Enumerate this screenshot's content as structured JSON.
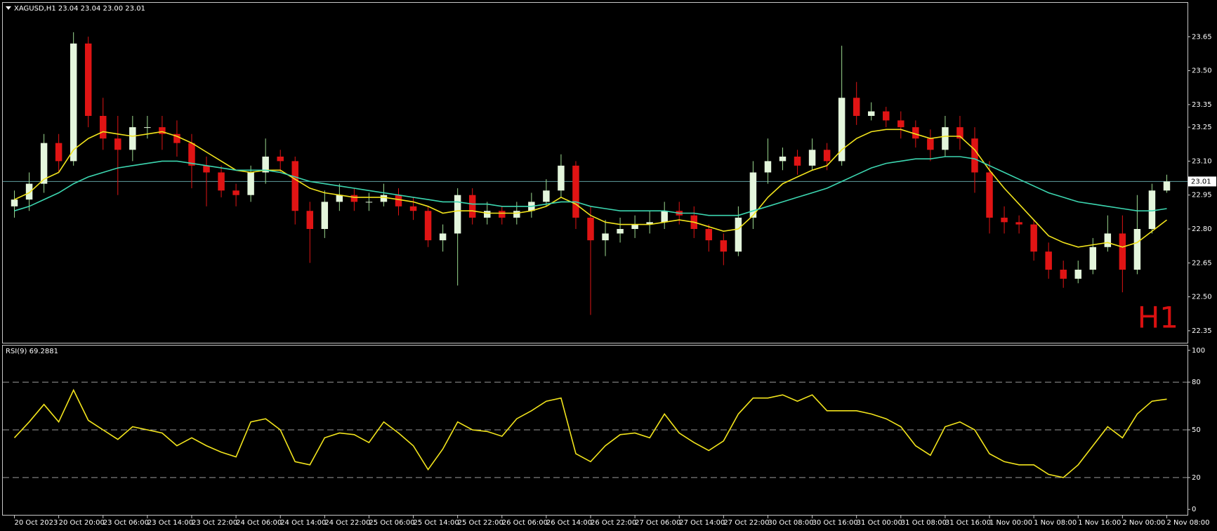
{
  "chart_data": [
    {
      "type": "candlestick",
      "title": "XAGUSD,H1 23.04 23.04 23.00 23.01",
      "watermark": "H1",
      "current_price": 23.01,
      "up_color": "#e4f6dc",
      "down_color": "#e01414",
      "current_price_color": "#5f9ea0",
      "categories": [
        "20 Oct 2023",
        null,
        null,
        "20 Oct 20:00",
        null,
        null,
        "23 Oct 06:00",
        null,
        null,
        "23 Oct 14:00",
        null,
        null,
        "23 Oct 22:00",
        null,
        null,
        "24 Oct 06:00",
        null,
        null,
        "24 Oct 14:00",
        null,
        null,
        "24 Oct 22:00",
        null,
        null,
        "25 Oct 06:00",
        null,
        null,
        "25 Oct 14:00",
        null,
        null,
        "25 Oct 22:00",
        null,
        null,
        "26 Oct 06:00",
        null,
        null,
        "26 Oct 14:00",
        null,
        null,
        "26 Oct 22:00",
        null,
        null,
        "27 Oct 06:00",
        null,
        null,
        "27 Oct 14:00",
        null,
        null,
        "27 Oct 22:00",
        null,
        null,
        "30 Oct 08:00",
        null,
        null,
        "30 Oct 16:00",
        null,
        null,
        "31 Oct 00:00",
        null,
        null,
        "31 Oct 08:00",
        null,
        null,
        "31 Oct 16:00",
        null,
        null,
        "1 Nov 00:00",
        null,
        null,
        "1 Nov 08:00",
        null,
        null,
        "1 Nov 16:00",
        null,
        null,
        "2 Nov 00:00",
        null,
        null,
        "2 Nov 08:00"
      ],
      "open": [
        22.9,
        22.93,
        23.0,
        23.18,
        23.1,
        23.62,
        23.3,
        23.2,
        23.15,
        23.25,
        23.25,
        23.22,
        23.18,
        23.08,
        23.05,
        22.97,
        22.95,
        23.05,
        23.12,
        23.1,
        22.88,
        22.8,
        22.92,
        22.95,
        22.92,
        22.92,
        22.95,
        22.9,
        22.88,
        22.75,
        22.78,
        22.95,
        22.85,
        22.88,
        22.85,
        22.88,
        22.92,
        22.97,
        23.08,
        22.85,
        22.75,
        22.78,
        22.8,
        22.82,
        22.83,
        22.88,
        22.86,
        22.8,
        22.75,
        22.7,
        22.85,
        23.05,
        23.1,
        23.12,
        23.08,
        23.15,
        23.1,
        23.38,
        23.3,
        23.32,
        23.28,
        23.25,
        23.2,
        23.15,
        23.25,
        23.2,
        23.05,
        22.85,
        22.83,
        22.82,
        22.7,
        22.62,
        22.58,
        22.62,
        22.72,
        22.78,
        22.62,
        22.8,
        22.97
      ],
      "high": [
        22.97,
        23.05,
        23.22,
        23.22,
        23.67,
        23.65,
        23.38,
        23.3,
        23.3,
        23.3,
        23.3,
        23.28,
        23.22,
        23.12,
        23.08,
        23.0,
        23.08,
        23.2,
        23.15,
        23.12,
        22.92,
        22.97,
        23.0,
        22.98,
        22.96,
        23.0,
        22.98,
        22.94,
        22.9,
        22.82,
        22.98,
        22.98,
        22.92,
        22.9,
        22.92,
        22.96,
        23.02,
        23.13,
        23.1,
        22.9,
        22.84,
        22.85,
        22.86,
        22.88,
        22.92,
        22.92,
        22.9,
        22.82,
        22.78,
        22.9,
        23.1,
        23.2,
        23.16,
        23.15,
        23.2,
        23.18,
        23.61,
        23.45,
        23.36,
        23.34,
        23.32,
        23.28,
        23.24,
        23.3,
        23.3,
        23.25,
        23.1,
        22.9,
        22.86,
        22.84,
        22.74,
        22.66,
        22.66,
        22.76,
        22.86,
        22.86,
        22.95,
        23.0,
        23.04
      ],
      "low": [
        22.85,
        22.88,
        22.96,
        23.05,
        23.08,
        23.25,
        23.15,
        22.95,
        23.1,
        23.2,
        23.15,
        23.12,
        22.98,
        22.9,
        22.94,
        22.9,
        22.92,
        23.0,
        23.05,
        22.82,
        22.65,
        22.76,
        22.88,
        22.88,
        22.88,
        22.9,
        22.86,
        22.84,
        22.72,
        22.7,
        22.55,
        22.82,
        22.82,
        22.82,
        22.82,
        22.85,
        22.9,
        22.94,
        22.8,
        22.42,
        22.68,
        22.74,
        22.76,
        22.78,
        22.8,
        22.82,
        22.76,
        22.7,
        22.64,
        22.68,
        22.8,
        23.0,
        23.06,
        23.04,
        23.06,
        23.06,
        23.08,
        23.26,
        23.28,
        23.25,
        23.2,
        23.16,
        23.1,
        23.12,
        23.15,
        22.96,
        22.78,
        22.78,
        22.78,
        22.66,
        22.58,
        22.54,
        22.56,
        22.6,
        22.7,
        22.52,
        22.6,
        22.78,
        22.96
      ],
      "close": [
        22.93,
        23.0,
        23.18,
        23.1,
        23.62,
        23.3,
        23.2,
        23.15,
        23.25,
        23.25,
        23.22,
        23.18,
        23.08,
        23.05,
        22.97,
        22.95,
        23.05,
        23.12,
        23.1,
        22.88,
        22.8,
        22.92,
        22.95,
        22.92,
        22.92,
        22.95,
        22.9,
        22.88,
        22.75,
        22.78,
        22.95,
        22.85,
        22.88,
        22.85,
        22.88,
        22.92,
        22.97,
        23.08,
        22.85,
        22.75,
        22.78,
        22.8,
        22.82,
        22.83,
        22.88,
        22.86,
        22.8,
        22.75,
        22.7,
        22.85,
        23.05,
        23.1,
        23.12,
        23.08,
        23.15,
        23.1,
        23.38,
        23.3,
        23.32,
        23.28,
        23.25,
        23.2,
        23.15,
        23.25,
        23.2,
        23.05,
        22.85,
        22.83,
        22.82,
        22.7,
        22.62,
        22.58,
        22.62,
        22.72,
        22.78,
        22.62,
        22.8,
        22.97,
        23.01
      ],
      "series": [
        {
          "color": "#f2e41c",
          "values": [
            22.93,
            22.96,
            23.02,
            23.05,
            23.15,
            23.2,
            23.23,
            23.22,
            23.21,
            23.22,
            23.23,
            23.21,
            23.18,
            23.14,
            23.1,
            23.06,
            23.05,
            23.06,
            23.06,
            23.02,
            22.98,
            22.96,
            22.95,
            22.94,
            22.94,
            22.94,
            22.93,
            22.92,
            22.9,
            22.87,
            22.88,
            22.88,
            22.87,
            22.87,
            22.87,
            22.88,
            22.9,
            22.94,
            22.91,
            22.86,
            22.83,
            22.82,
            22.82,
            22.82,
            22.83,
            22.84,
            22.83,
            22.81,
            22.79,
            22.8,
            22.86,
            22.94,
            23.0,
            23.03,
            23.06,
            23.08,
            23.15,
            23.2,
            23.23,
            23.24,
            23.24,
            23.22,
            23.2,
            23.21,
            23.21,
            23.15,
            23.06,
            22.98,
            22.91,
            22.84,
            22.77,
            22.74,
            22.72,
            22.73,
            22.74,
            22.72,
            22.74,
            22.79,
            22.84
          ]
        },
        {
          "color": "#3cd6b0",
          "values": [
            22.88,
            22.9,
            22.93,
            22.96,
            23.0,
            23.03,
            23.05,
            23.07,
            23.08,
            23.09,
            23.1,
            23.1,
            23.09,
            23.08,
            23.07,
            23.06,
            23.06,
            23.06,
            23.05,
            23.03,
            23.01,
            23.0,
            22.99,
            22.98,
            22.97,
            22.96,
            22.95,
            22.94,
            22.93,
            22.92,
            22.92,
            22.91,
            22.91,
            22.9,
            22.9,
            22.9,
            22.91,
            22.92,
            22.92,
            22.9,
            22.89,
            22.88,
            22.88,
            22.88,
            22.88,
            22.87,
            22.87,
            22.86,
            22.86,
            22.86,
            22.88,
            22.9,
            22.92,
            22.94,
            22.96,
            22.98,
            23.01,
            23.04,
            23.07,
            23.09,
            23.1,
            23.11,
            23.11,
            23.12,
            23.12,
            23.11,
            23.08,
            23.05,
            23.02,
            22.99,
            22.96,
            22.94,
            22.92,
            22.91,
            22.9,
            22.89,
            22.88,
            22.88,
            22.89
          ]
        }
      ],
      "ylim": [
        22.3,
        23.8
      ],
      "yticks": [
        23.65,
        {
          "value": 23.5,
          "label": "23.50"
        },
        23.35,
        23.25,
        {
          "value": 23.1,
          "label": "23.10"
        },
        22.95,
        {
          "value": 22.8,
          "label": "22.80"
        },
        22.65,
        {
          "value": 22.5,
          "label": "22.50"
        },
        22.35
      ]
    },
    {
      "type": "line",
      "title": "RSI(9) 69.2881",
      "series": [
        {
          "color": "#f2e41c",
          "values": [
            45,
            55,
            66,
            55,
            75,
            56,
            50,
            44,
            52,
            50,
            48,
            40,
            45,
            40,
            36,
            33,
            55,
            57,
            50,
            30,
            28,
            45,
            48,
            47,
            42,
            55,
            48,
            40,
            25,
            38,
            55,
            50,
            49,
            46,
            57,
            62,
            68,
            70,
            35,
            30,
            40,
            47,
            48,
            45,
            60,
            48,
            42,
            37,
            43,
            60,
            70,
            70,
            72,
            68,
            72,
            62,
            62,
            62,
            60,
            57,
            52,
            40,
            34,
            52,
            55,
            50,
            35,
            30,
            28,
            28,
            22,
            20,
            28,
            40,
            52,
            45,
            60,
            68,
            69.29
          ]
        }
      ],
      "ylim": [
        -3,
        103
      ],
      "yticks": [
        100,
        80,
        50,
        20,
        0
      ],
      "levels": [
        20,
        50,
        80
      ]
    }
  ]
}
